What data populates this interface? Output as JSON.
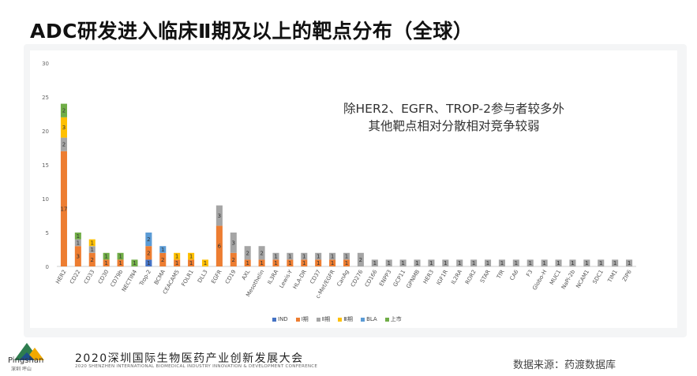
{
  "title": "ADC研发进入临床Ⅱ期及以上的靶点分布（全球）",
  "annotation": {
    "line1": "除HER2、EGFR、TROP-2参与者较多外",
    "line2": "其他靶点相对分散相对竞争较弱"
  },
  "footer": {
    "logo_text": "Pingshan",
    "logo_sub": "深圳 坪山",
    "conference": "2020深圳国际生物医药产业创新发展大会",
    "conference_en": "2020 SHENZHEN INTERNATIONAL BIOMEDICAL INDUSTRY INNOVATION & DEVELOPMENT CONFERENCE",
    "source": "数据来源：药渡数据库"
  },
  "colors": {
    "IND": "#4472c4",
    "I期": "#ed7d31",
    "II期": "#a5a5a5",
    "III期": "#ffc000",
    "BLA": "#5b9bd5",
    "上市": "#70ad47"
  },
  "chart_data": {
    "type": "bar",
    "stacked": true,
    "ylim": [
      0,
      30
    ],
    "yticks": [
      0,
      5,
      10,
      15,
      20,
      25,
      30
    ],
    "grid": false,
    "legend_position": "bottom",
    "categories": [
      "HER2",
      "CD22",
      "CD33",
      "CD30",
      "CD79b",
      "NECTIN4",
      "Trop-2",
      "BCMA",
      "CEACAM5",
      "FOLR1",
      "DLL3",
      "EGFR",
      "CD19",
      "AXL",
      "Mesothelin",
      "IL3RA",
      "Lewis-Y",
      "HLA-DR",
      "CD37",
      "c-Met/EGFR",
      "CanAg",
      "CD276",
      "CD166",
      "ENPP3",
      "GCP11",
      "GPNMB",
      "HER3",
      "IGF1R",
      "IL2RA",
      "ROR2",
      "STAR",
      "TfR",
      "CA6",
      "F3",
      "Globo-H",
      "MUC1",
      "NaPi-2b",
      "NCAM1",
      "SDC1",
      "TIM1",
      "ZIP6"
    ],
    "series": [
      {
        "name": "IND",
        "values": [
          0,
          0,
          0,
          0,
          0,
          0,
          1,
          0,
          0,
          0,
          0,
          0,
          0,
          0,
          0,
          0,
          0,
          0,
          0,
          0,
          0,
          0,
          0,
          0,
          0,
          0,
          0,
          0,
          0,
          0,
          0,
          0,
          0,
          0,
          0,
          0,
          0,
          0,
          0,
          0,
          0
        ]
      },
      {
        "name": "I期",
        "values": [
          17,
          3,
          2,
          1,
          1,
          0,
          2,
          2,
          1,
          1,
          0,
          6,
          2,
          1,
          1,
          1,
          1,
          1,
          1,
          1,
          1,
          0,
          0,
          0,
          0,
          0,
          0,
          0,
          0,
          0,
          0,
          0,
          0,
          0,
          0,
          0,
          0,
          0,
          0,
          0,
          0
        ]
      },
      {
        "name": "II期",
        "values": [
          2,
          1,
          1,
          0,
          0,
          0,
          0,
          0,
          0,
          0,
          0,
          3,
          3,
          2,
          2,
          1,
          1,
          1,
          1,
          1,
          1,
          2,
          1,
          1,
          1,
          1,
          1,
          1,
          1,
          1,
          1,
          1,
          1,
          1,
          1,
          1,
          1,
          1,
          1,
          1,
          1
        ]
      },
      {
        "name": "III期",
        "values": [
          3,
          0,
          1,
          0,
          0,
          0,
          0,
          0,
          1,
          1,
          1,
          0,
          0,
          0,
          0,
          0,
          0,
          0,
          0,
          0,
          0,
          0,
          0,
          0,
          0,
          0,
          0,
          0,
          0,
          0,
          0,
          0,
          0,
          0,
          0,
          0,
          0,
          0,
          0,
          0,
          0
        ]
      },
      {
        "name": "BLA",
        "values": [
          0,
          0,
          0,
          0,
          0,
          0,
          2,
          1,
          0,
          0,
          0,
          0,
          0,
          0,
          0,
          0,
          0,
          0,
          0,
          0,
          0,
          0,
          0,
          0,
          0,
          0,
          0,
          0,
          0,
          0,
          0,
          0,
          0,
          0,
          0,
          0,
          0,
          0,
          0,
          0,
          0
        ]
      },
      {
        "name": "上市",
        "values": [
          2,
          1,
          0,
          1,
          1,
          1,
          0,
          0,
          0,
          0,
          0,
          0,
          0,
          0,
          0,
          0,
          0,
          0,
          0,
          0,
          0,
          0,
          0,
          0,
          0,
          0,
          0,
          0,
          0,
          0,
          0,
          0,
          0,
          0,
          0,
          0,
          0,
          0,
          0,
          0,
          0
        ]
      }
    ],
    "legend_labels": [
      "IND",
      "Ⅰ期",
      "Ⅱ期",
      "Ⅲ期",
      "BLA",
      "上市"
    ]
  }
}
